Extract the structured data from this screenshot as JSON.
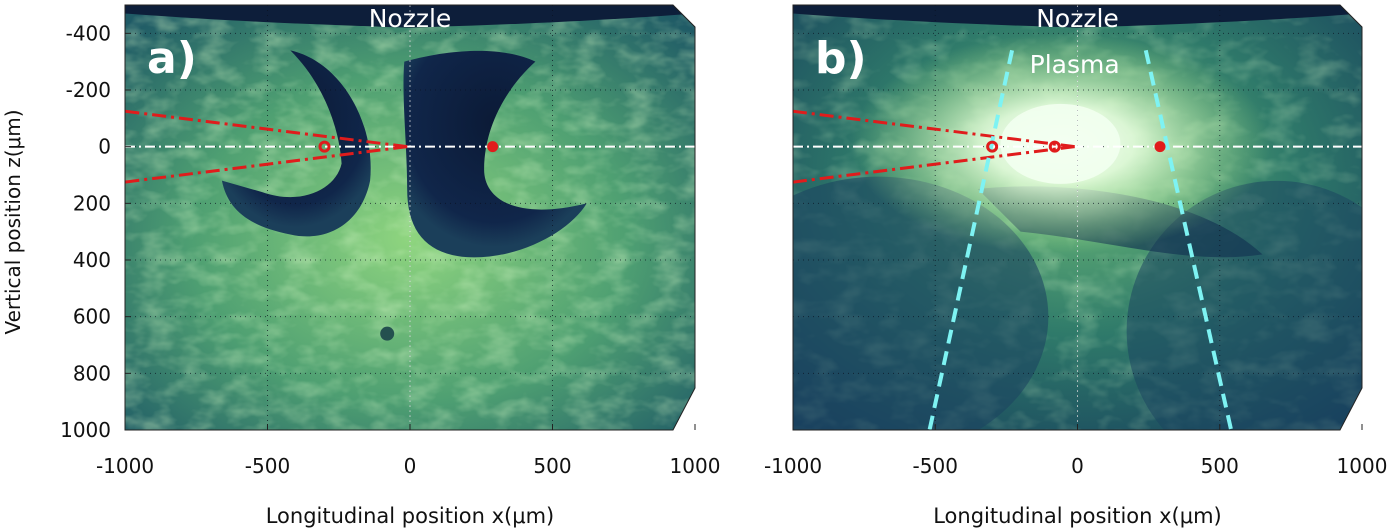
{
  "ylabel": "Vertical position z(μm)",
  "colors": {
    "field_dark": "#0d1e3a",
    "field_mid": "#2f7a6a",
    "field_bright": "#a8e88a",
    "plasma_glow": "#f2fff0",
    "laser_line": "#e01c1c",
    "axis_line": "#ffffff",
    "plasma_edge": "#7ef3f3",
    "text_on_image": "#ffffff",
    "tick_text": "#111111"
  },
  "chart_data": [
    {
      "type": "heatmap",
      "panel_label": "a)",
      "annotations": [
        "Nozzle"
      ],
      "xlabel": "Longitudinal position x(μm)",
      "xlim": [
        -1000,
        1000
      ],
      "ylim": [
        -500,
        1000
      ],
      "y_inverted": true,
      "xticks": [
        -1000,
        -500,
        0,
        500,
        1000
      ],
      "xtick_labels": [
        "-1000",
        "-500",
        "0",
        "500",
        "1000"
      ],
      "yticks": [
        -400,
        -200,
        0,
        200,
        400,
        600,
        800,
        1000
      ],
      "ytick_labels": [
        "-400",
        "-200",
        "0",
        "200",
        "400",
        "600",
        "800",
        "1000"
      ],
      "grid": true,
      "axis_line_z": 0,
      "markers": [
        {
          "x": -300,
          "z": 0,
          "style": "open-circle"
        },
        {
          "x": 290,
          "z": 0,
          "style": "filled-circle"
        }
      ],
      "laser_cone": {
        "apex": [
          -10,
          0
        ],
        "ends": [
          [
            -1000,
            -125
          ],
          [
            -1000,
            125
          ]
        ]
      },
      "plasma_edges": []
    },
    {
      "type": "heatmap",
      "panel_label": "b)",
      "annotations": [
        "Nozzle",
        "Plasma"
      ],
      "xlabel": "Longitudinal position x(μm)",
      "xlim": [
        -1000,
        1000
      ],
      "ylim": [
        -500,
        1000
      ],
      "y_inverted": true,
      "xticks": [
        -1000,
        -500,
        0,
        500,
        1000
      ],
      "xtick_labels": [
        "-1000",
        "-500",
        "0",
        "500",
        "1000"
      ],
      "yticks": [
        -400,
        -200,
        0,
        200,
        400,
        600,
        800,
        1000
      ],
      "ytick_labels": [
        "-400",
        "-200",
        "0",
        "200",
        "400",
        "600",
        "800",
        "1000"
      ],
      "grid": true,
      "axis_line_z": 0,
      "markers": [
        {
          "x": -300,
          "z": 0,
          "style": "open-circle"
        },
        {
          "x": -80,
          "z": 0,
          "style": "open-circle"
        },
        {
          "x": 290,
          "z": 0,
          "style": "filled-circle"
        }
      ],
      "laser_cone": {
        "apex": [
          -10,
          0
        ],
        "ends": [
          [
            -1000,
            -125
          ],
          [
            -1000,
            125
          ]
        ]
      },
      "plasma_edges": [
        [
          [
            -230,
            -340
          ],
          [
            -520,
            1000
          ]
        ],
        [
          [
            240,
            -340
          ],
          [
            540,
            1000
          ]
        ]
      ]
    }
  ]
}
